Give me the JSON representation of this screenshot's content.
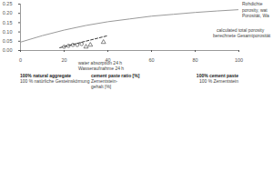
{
  "chart_data": {
    "type": "scatter",
    "xlim": [
      0,
      100
    ],
    "xticks": [
      0,
      20,
      40,
      60,
      80,
      100
    ],
    "ylim": [
      0,
      0.25
    ],
    "yticks": [
      {
        "value": 0,
        "label": "0.00"
      },
      0.05,
      {
        "value": 0.1,
        "label": "0.10"
      },
      0.15,
      {
        "value": 0.2,
        "label": "0.20"
      },
      0.25
    ],
    "grid": false,
    "series": [
      {
        "type": "line",
        "color": "#9a9a9a",
        "line_style": "solid",
        "x": [
          0,
          10,
          20,
          30,
          40,
          50,
          60,
          70,
          80,
          90,
          100
        ],
        "values": [
          0.045,
          0.08,
          0.11,
          0.135,
          0.155,
          0.17,
          0.185,
          0.195,
          0.205,
          0.213,
          0.22
        ]
      },
      {
        "type": "line",
        "color": "#222222",
        "line_style": "dashed",
        "x": [
          18,
          40
        ],
        "values": [
          0.015,
          0.08
        ]
      },
      {
        "type": "scatter",
        "color": "#333333",
        "marker": "circle",
        "x": [
          20,
          22,
          24,
          26,
          28
        ],
        "values": [
          0.02,
          0.025,
          0.03,
          0.03,
          0.035
        ]
      },
      {
        "type": "scatter",
        "color": "#333333",
        "marker": "triangle",
        "x": [
          30,
          32,
          38
        ],
        "values": [
          0.02,
          0.03,
          0.045
        ]
      }
    ],
    "annotations": [
      {
        "text": "Rohdichte",
        "style": "plain"
      },
      {
        "text": "porosity, wat",
        "style": "plain"
      },
      {
        "text": "Porosität, Wa",
        "style": "plain"
      },
      {
        "text": "calculated total porosity",
        "style": "plain"
      },
      {
        "text": "berechnete Gesamtporosität",
        "style": "plain"
      },
      {
        "text": "water absorption 24 h",
        "style": "plain"
      },
      {
        "text": "Wasseraufnahme 24 h",
        "style": "plain"
      },
      {
        "text": "100% natural aggregate",
        "style": "bold"
      },
      {
        "text": "100 % natürliche Gesteinskörnung",
        "style": "plain"
      },
      {
        "text": "cement paste ratio [%]",
        "style": "bold"
      },
      {
        "text": "Zementstein-",
        "style": "plain"
      },
      {
        "text": "gehalt [%]",
        "style": "plain"
      },
      {
        "text": "100% cement paste",
        "style": "bold"
      },
      {
        "text": "100 % Zementstein",
        "style": "plain"
      }
    ]
  }
}
